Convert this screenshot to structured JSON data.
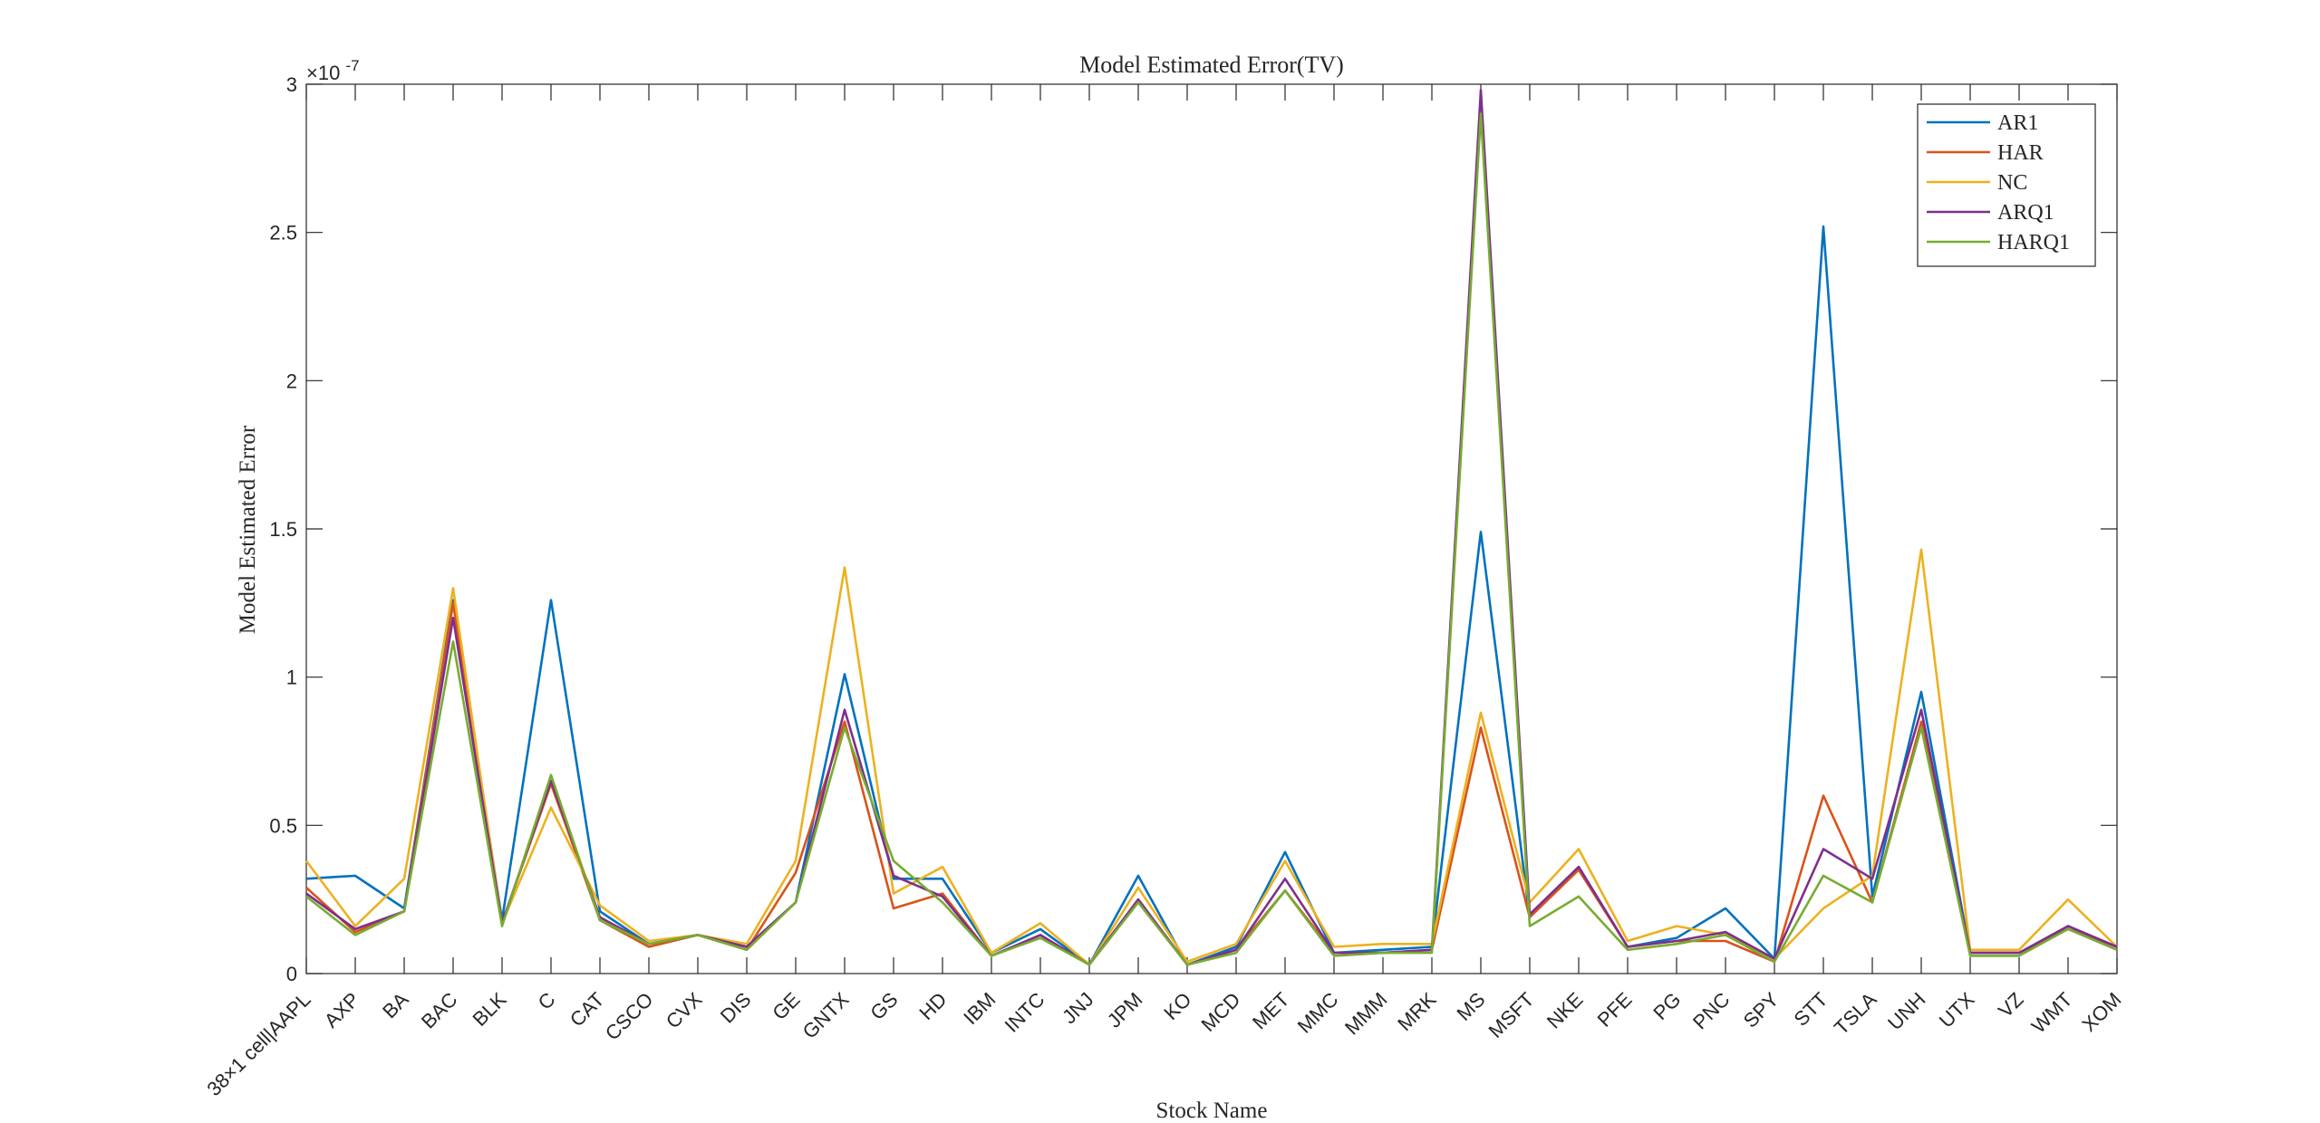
{
  "chart_data": {
    "type": "line",
    "title": "Model Estimated Error(TV)",
    "xlabel": "Stock Name",
    "ylabel": "Model Estimated Error",
    "y_exponent_label": "×10",
    "y_exponent_power": "-7",
    "ylim": [
      0,
      3.0
    ],
    "y_ticks": [
      "0",
      "0.5",
      "1",
      "1.5",
      "2",
      "2.5",
      "3"
    ],
    "y_tick_values": [
      0,
      0.5,
      1,
      1.5,
      2,
      2.5,
      3
    ],
    "grid": false,
    "legend_position": "top-right",
    "categories": [
      "38×1 cell|AAPL",
      "AXP",
      "BA",
      "BAC",
      "BLK",
      "C",
      "CAT",
      "CSCO",
      "CVX",
      "DIS",
      "GE",
      "GNTX",
      "GS",
      "HD",
      "IBM",
      "INTC",
      "JNJ",
      "JPM",
      "KO",
      "MCD",
      "MET",
      "MMC",
      "MMM",
      "MRK",
      "MS",
      "MSFT",
      "NKE",
      "PFE",
      "PG",
      "PNC",
      "SPY",
      "STT",
      "TSLA",
      "UNH",
      "UTX",
      "VZ",
      "WMT",
      "XOM"
    ],
    "series": [
      {
        "name": "AR1",
        "color": "#0072BD",
        "values": [
          0.32,
          0.33,
          0.22,
          1.26,
          0.18,
          1.26,
          0.21,
          0.1,
          0.13,
          0.09,
          0.24,
          1.01,
          0.32,
          0.32,
          0.07,
          0.15,
          0.03,
          0.33,
          0.03,
          0.09,
          0.41,
          0.07,
          0.08,
          0.09,
          1.49,
          0.19,
          0.36,
          0.09,
          0.12,
          0.22,
          0.05,
          2.52,
          0.26,
          0.95,
          0.07,
          0.07,
          0.16,
          0.09
        ]
      },
      {
        "name": "HAR",
        "color": "#D95319",
        "values": [
          0.29,
          0.14,
          0.21,
          1.25,
          0.17,
          0.64,
          0.18,
          0.09,
          0.13,
          0.08,
          0.34,
          0.85,
          0.22,
          0.27,
          0.06,
          0.13,
          0.03,
          0.25,
          0.03,
          0.08,
          0.28,
          0.07,
          0.07,
          0.08,
          0.83,
          0.19,
          0.35,
          0.09,
          0.11,
          0.11,
          0.04,
          0.6,
          0.24,
          0.85,
          0.07,
          0.07,
          0.15,
          0.09
        ]
      },
      {
        "name": "NC",
        "color": "#EDB120",
        "values": [
          0.38,
          0.16,
          0.32,
          1.3,
          0.17,
          0.56,
          0.23,
          0.11,
          0.13,
          0.1,
          0.38,
          1.37,
          0.27,
          0.36,
          0.07,
          0.17,
          0.03,
          0.29,
          0.04,
          0.1,
          0.38,
          0.09,
          0.1,
          0.1,
          0.88,
          0.24,
          0.42,
          0.11,
          0.16,
          0.13,
          0.05,
          0.22,
          0.33,
          1.43,
          0.08,
          0.08,
          0.25,
          0.09
        ]
      },
      {
        "name": "ARQ1",
        "color": "#7E2F8E",
        "values": [
          0.27,
          0.15,
          0.21,
          1.2,
          0.17,
          0.65,
          0.19,
          0.1,
          0.13,
          0.09,
          0.24,
          0.89,
          0.33,
          0.26,
          0.06,
          0.13,
          0.03,
          0.25,
          0.03,
          0.08,
          0.32,
          0.07,
          0.07,
          0.08,
          2.98,
          0.2,
          0.36,
          0.09,
          0.11,
          0.14,
          0.05,
          0.42,
          0.32,
          0.89,
          0.07,
          0.07,
          0.16,
          0.09
        ]
      },
      {
        "name": "HARQ1",
        "color": "#77AC30",
        "values": [
          0.26,
          0.13,
          0.21,
          1.12,
          0.16,
          0.67,
          0.18,
          0.1,
          0.13,
          0.08,
          0.24,
          0.83,
          0.38,
          0.24,
          0.06,
          0.12,
          0.03,
          0.24,
          0.03,
          0.07,
          0.28,
          0.06,
          0.07,
          0.07,
          2.9,
          0.16,
          0.26,
          0.08,
          0.1,
          0.13,
          0.04,
          0.33,
          0.24,
          0.83,
          0.06,
          0.06,
          0.15,
          0.08
        ]
      }
    ]
  }
}
